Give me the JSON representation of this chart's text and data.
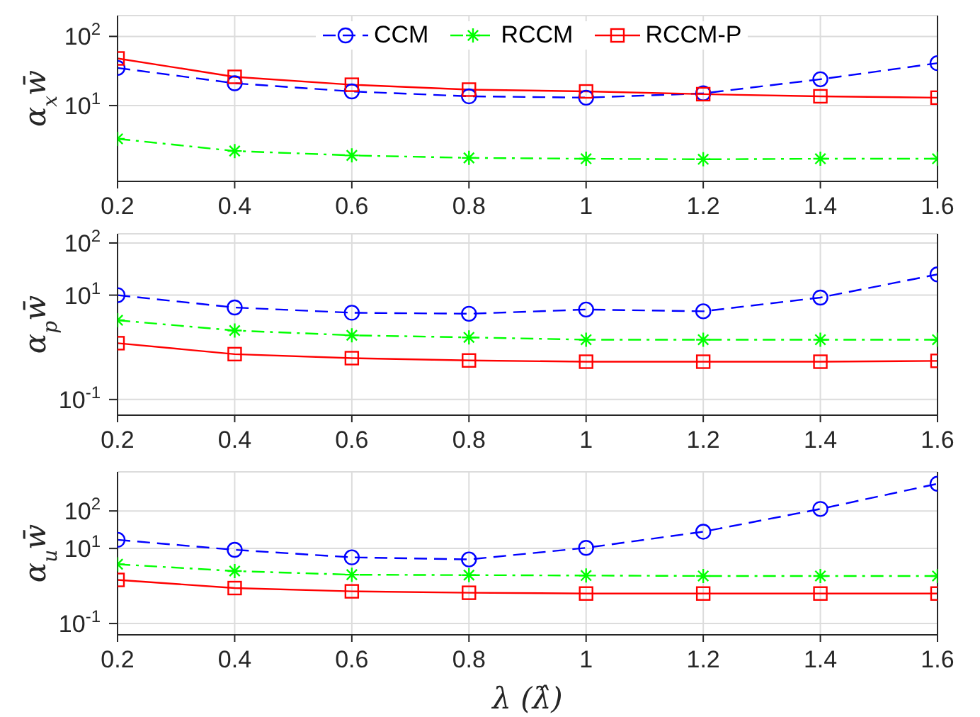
{
  "chart_data": [
    {
      "type": "line",
      "ylabel": "α$_{x}$w̄",
      "x": [
        0.2,
        0.4,
        0.6,
        0.8,
        1.0,
        1.2,
        1.4,
        1.6
      ],
      "xlim": [
        0.2,
        1.6
      ],
      "xticks": [
        0.2,
        0.4,
        0.6,
        0.8,
        1,
        1.2,
        1.4,
        1.6
      ],
      "ylim": [
        0.8,
        200
      ],
      "yticks": [
        {
          "value": 10,
          "label": "10$^{1}$"
        },
        {
          "value": 100,
          "label": "10$^{2}$"
        }
      ],
      "log": true,
      "grid": true,
      "legend": "top",
      "series": [
        {
          "name": "CCM",
          "color": "#0000ff",
          "marker": "circle",
          "line_style": "dashed",
          "values": [
            35,
            21,
            16,
            13.6,
            13,
            15,
            24,
            41
          ]
        },
        {
          "name": "RCCM",
          "color": "#00ff00",
          "marker": "cross",
          "line_style": "dashdot",
          "values": [
            3.3,
            2.2,
            1.9,
            1.75,
            1.7,
            1.67,
            1.7,
            1.7
          ]
        },
        {
          "name": "RCCM-P",
          "color": "#ff0000",
          "marker": "square",
          "line_style": "solid",
          "values": [
            48,
            26,
            20,
            17,
            16,
            14.6,
            13.6,
            13
          ]
        }
      ]
    },
    {
      "type": "line",
      "ylabel": "α$_{p}$w̄",
      "x": [
        0.2,
        0.4,
        0.6,
        0.8,
        1.0,
        1.2,
        1.4,
        1.6
      ],
      "xlim": [
        0.2,
        1.6
      ],
      "xticks": [
        0.2,
        0.4,
        0.6,
        0.8,
        1,
        1.2,
        1.4,
        1.6
      ],
      "ylim": [
        0.05,
        150
      ],
      "yticks": [
        {
          "value": 0.1,
          "label": "10$^{-1}$"
        },
        {
          "value": 10,
          "label": "10$^{1}$"
        },
        {
          "value": 100,
          "label": "10$^{2}$"
        }
      ],
      "log": true,
      "grid": true,
      "series": [
        {
          "color": "#0000ff",
          "marker": "circle",
          "line_style": "dashed",
          "values": [
            10,
            5.8,
            4.6,
            4.4,
            5.3,
            4.9,
            9,
            25
          ]
        },
        {
          "color": "#00ff00",
          "marker": "cross",
          "line_style": "dashdot",
          "values": [
            3.3,
            2.1,
            1.7,
            1.55,
            1.4,
            1.4,
            1.4,
            1.4
          ]
        },
        {
          "color": "#ff0000",
          "marker": "square",
          "line_style": "solid",
          "values": [
            1.2,
            0.74,
            0.62,
            0.56,
            0.53,
            0.53,
            0.53,
            0.55
          ]
        }
      ]
    },
    {
      "type": "line",
      "xlabel": "λ (λ̂)",
      "ylabel": "α$_{u}$w̄",
      "x": [
        0.2,
        0.4,
        0.6,
        0.8,
        1.0,
        1.2,
        1.4,
        1.6
      ],
      "xlim": [
        0.2,
        1.6
      ],
      "xticks": [
        0.2,
        0.4,
        0.6,
        0.8,
        1,
        1.2,
        1.4,
        1.6
      ],
      "ylim": [
        0.05,
        1100
      ],
      "yticks": [
        {
          "value": 0.1,
          "label": "10$^{-1}$"
        },
        {
          "value": 10,
          "label": "10$^{1}$"
        },
        {
          "value": 100,
          "label": "10$^{2}$"
        }
      ],
      "log": true,
      "grid": true,
      "series": [
        {
          "color": "#0000ff",
          "marker": "circle",
          "line_style": "dashed",
          "values": [
            17,
            9.2,
            5.8,
            5.1,
            10.4,
            28,
            113,
            530
          ]
        },
        {
          "color": "#00ff00",
          "marker": "cross",
          "line_style": "dashdot",
          "values": [
            3.8,
            2.5,
            2.0,
            1.95,
            1.9,
            1.85,
            1.85,
            1.85
          ]
        },
        {
          "color": "#ff0000",
          "marker": "square",
          "line_style": "solid",
          "values": [
            1.45,
            0.88,
            0.72,
            0.66,
            0.63,
            0.63,
            0.63,
            0.63
          ]
        }
      ]
    }
  ]
}
